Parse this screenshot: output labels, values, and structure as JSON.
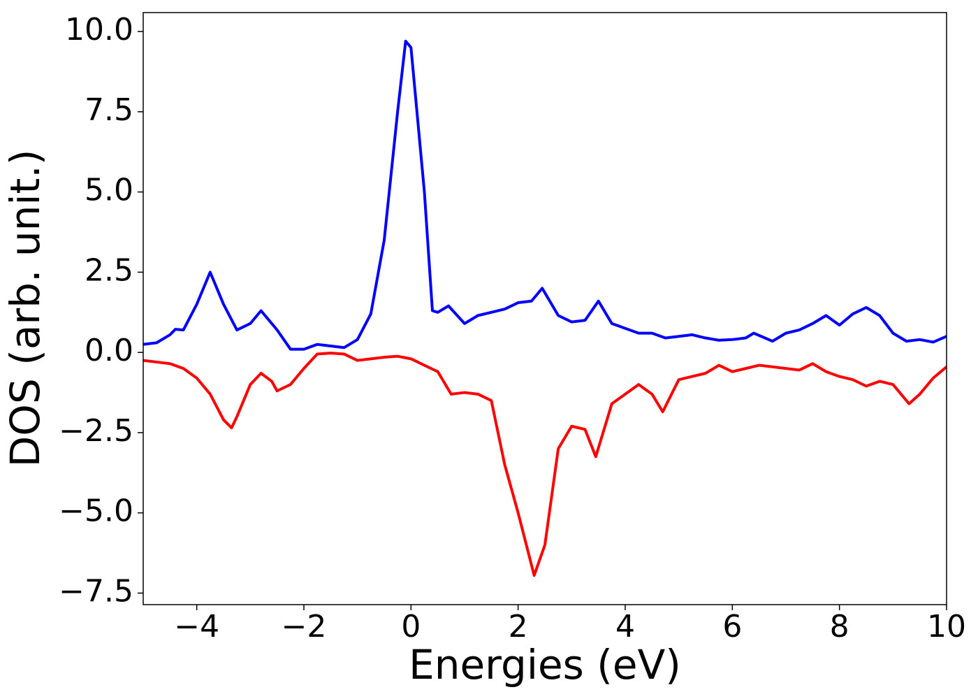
{
  "chart_data": {
    "type": "line",
    "xlabel": "Energies (eV)",
    "ylabel": "DOS (arb. unit.)",
    "xlim": [
      -5,
      10
    ],
    "ylim": [
      -7.86,
      10.59
    ],
    "xticks": [
      {
        "value": -4,
        "label": "−4"
      },
      {
        "value": -2,
        "label": "−2"
      },
      0,
      2,
      4,
      6,
      8,
      10
    ],
    "yticks": [
      {
        "value": -7.5,
        "label": "−7.5"
      },
      {
        "value": -5,
        "label": "−5.0"
      },
      {
        "value": -2.5,
        "label": "−2.5"
      },
      {
        "value": 0,
        "label": "0.0"
      },
      {
        "value": 2.5,
        "label": "2.5"
      },
      {
        "value": 5,
        "label": "5.0"
      },
      {
        "value": 7.5,
        "label": "7.5"
      },
      {
        "value": 10,
        "label": "10.0"
      }
    ],
    "grid": false,
    "series": [
      {
        "color": "#0000ff",
        "x": [
          -5,
          -4.75,
          -4.5,
          -4.4,
          -4.25,
          -4.0,
          -3.75,
          -3.5,
          -3.25,
          -3.0,
          -2.8,
          -2.5,
          -2.25,
          -2.0,
          -1.75,
          -1.5,
          -1.25,
          -1.0,
          -0.75,
          -0.5,
          -0.25,
          -0.1,
          0,
          0.25,
          0.4,
          0.5,
          0.7,
          1.0,
          1.25,
          1.5,
          1.75,
          2.0,
          2.25,
          2.45,
          2.75,
          3.0,
          3.25,
          3.5,
          3.75,
          4.0,
          4.25,
          4.5,
          4.75,
          5.0,
          5.25,
          5.5,
          5.75,
          6.0,
          6.25,
          6.4,
          6.75,
          7.0,
          7.25,
          7.5,
          7.75,
          8.0,
          8.25,
          8.5,
          8.75,
          9.0,
          9.25,
          9.5,
          9.75,
          10
        ],
        "values": [
          0.25,
          0.3,
          0.55,
          0.72,
          0.7,
          1.5,
          2.5,
          1.5,
          0.7,
          0.9,
          1.3,
          0.7,
          0.1,
          0.1,
          0.25,
          0.2,
          0.15,
          0.4,
          1.2,
          3.5,
          7.5,
          9.7,
          9.5,
          5,
          1.3,
          1.25,
          1.45,
          0.9,
          1.15,
          1.25,
          1.35,
          1.55,
          1.6,
          2.0,
          1.15,
          0.95,
          1.0,
          1.6,
          0.9,
          0.75,
          0.6,
          0.6,
          0.45,
          0.5,
          0.55,
          0.45,
          0.38,
          0.4,
          0.45,
          0.6,
          0.35,
          0.6,
          0.7,
          0.9,
          1.15,
          0.85,
          1.2,
          1.4,
          1.15,
          0.6,
          0.35,
          0.4,
          0.32,
          0.5
        ]
      },
      {
        "color": "#ff0000",
        "x": [
          -5,
          -4.75,
          -4.5,
          -4.25,
          -4.0,
          -3.75,
          -3.5,
          -3.35,
          -3.25,
          -3.0,
          -2.8,
          -2.6,
          -2.5,
          -2.25,
          -2.0,
          -1.75,
          -1.5,
          -1.25,
          -1.0,
          -0.75,
          -0.5,
          -0.25,
          0,
          0.25,
          0.5,
          0.75,
          1.0,
          1.25,
          1.5,
          1.75,
          2.0,
          2.3,
          2.5,
          2.75,
          3.0,
          3.25,
          3.45,
          3.75,
          4.0,
          4.25,
          4.5,
          4.7,
          5.0,
          5.25,
          5.5,
          5.75,
          6.0,
          6.25,
          6.5,
          6.75,
          7.0,
          7.25,
          7.5,
          7.75,
          8.0,
          8.25,
          8.5,
          8.75,
          9.0,
          9.3,
          9.5,
          9.75,
          10
        ],
        "values": [
          -0.25,
          -0.3,
          -0.35,
          -0.5,
          -0.8,
          -1.3,
          -2.1,
          -2.35,
          -2.0,
          -1.0,
          -0.65,
          -0.9,
          -1.2,
          -1.0,
          -0.5,
          -0.05,
          -0.02,
          -0.05,
          -0.25,
          -0.2,
          -0.15,
          -0.12,
          -0.2,
          -0.4,
          -0.6,
          -1.3,
          -1.25,
          -1.3,
          -1.5,
          -3.5,
          -5.0,
          -6.95,
          -6.0,
          -3.0,
          -2.3,
          -2.4,
          -3.25,
          -1.6,
          -1.3,
          -1.0,
          -1.3,
          -1.85,
          -0.85,
          -0.75,
          -0.65,
          -0.4,
          -0.6,
          -0.5,
          -0.4,
          -0.45,
          -0.5,
          -0.55,
          -0.35,
          -0.6,
          -0.75,
          -0.85,
          -1.05,
          -0.9,
          -1.0,
          -1.6,
          -1.3,
          -0.8,
          -0.45
        ]
      }
    ]
  }
}
